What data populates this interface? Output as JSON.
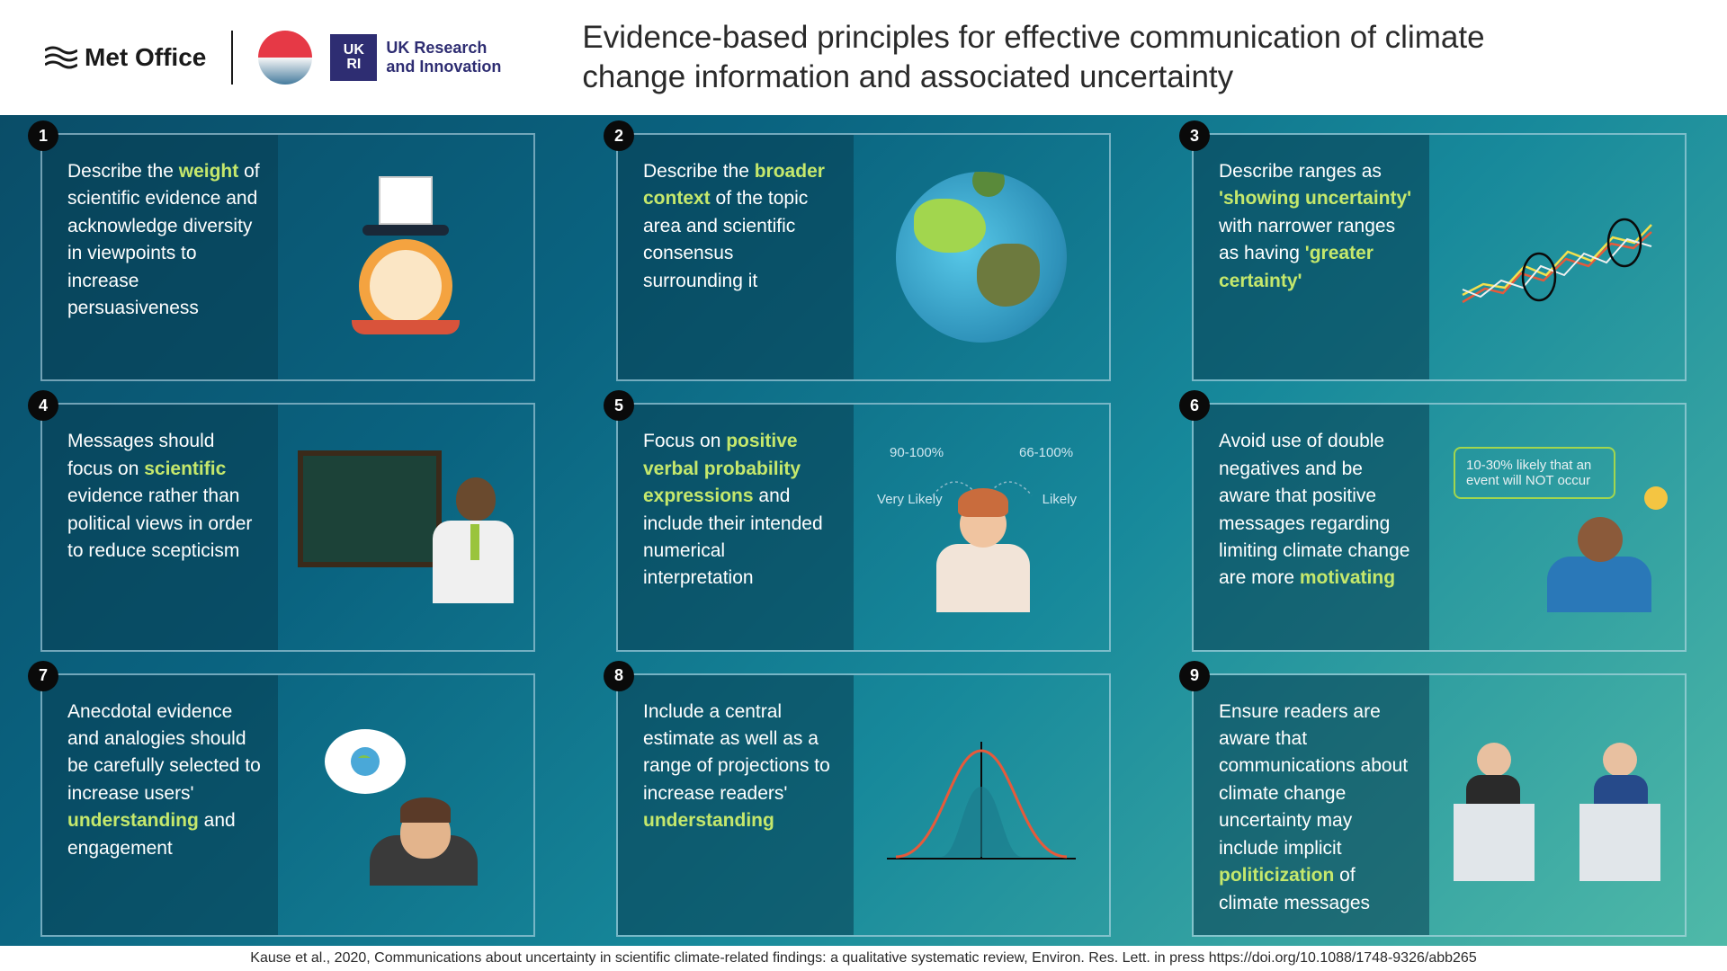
{
  "header": {
    "met_office": "Met Office",
    "ukri_line1": "UK Research",
    "ukri_line2": "and Innovation",
    "ukri_box": "UK RI",
    "title": "Evidence-based principles for effective communication of climate change information and associated uncertainty"
  },
  "style": {
    "highlight_color": "#c5e86c",
    "card_border_color": "rgba(201,225,238,0.55)",
    "card_text_bg": "rgba(7,60,80,0.55)",
    "card_text_color": "#ffffff",
    "gradient_from": "#0a4d68",
    "gradient_to": "#4fb9a8",
    "number_badge_bg": "#0a0a0a",
    "font_size_body": 21,
    "font_size_title": 35
  },
  "cards": [
    {
      "num": "1",
      "segments": [
        {
          "t": "Describe the "
        },
        {
          "t": "weight",
          "hl": true
        },
        {
          "t": " of scientific evidence and acknowledge diversity in viewpoints to increase persuasiveness"
        }
      ],
      "illus": "scale"
    },
    {
      "num": "2",
      "segments": [
        {
          "t": "Describe the "
        },
        {
          "t": "broader context",
          "hl": true
        },
        {
          "t": " of the topic area and scientific consensus surrounding it"
        }
      ],
      "illus": "globe"
    },
    {
      "num": "3",
      "segments": [
        {
          "t": "Describe ranges as "
        },
        {
          "t": "'showing uncertainty'",
          "hl": true
        },
        {
          "t": " with narrower ranges as having "
        },
        {
          "t": "'greater certainty'",
          "hl": true
        }
      ],
      "illus": "chart"
    },
    {
      "num": "4",
      "segments": [
        {
          "t": "Messages should focus on "
        },
        {
          "t": "scientific",
          "hl": true
        },
        {
          "t": " evidence rather than political views in order to reduce scepticism"
        }
      ],
      "illus": "teacher"
    },
    {
      "num": "5",
      "segments": [
        {
          "t": "Focus on "
        },
        {
          "t": "positive verbal probability expressions",
          "hl": true
        },
        {
          "t": " and include their intended numerical interpretation"
        }
      ],
      "illus": "probability",
      "labels": {
        "left_pct": "90-100%",
        "right_pct": "66-100%",
        "left_term": "Very Likely",
        "right_term": "Likely"
      }
    },
    {
      "num": "6",
      "segments": [
        {
          "t": "Avoid use of double negatives and be aware that positive messages regarding limiting climate change are more "
        },
        {
          "t": "motivating",
          "hl": true
        }
      ],
      "illus": "speaker",
      "bubble": "10-30% likely that an event will NOT occur"
    },
    {
      "num": "7",
      "segments": [
        {
          "t": "Anecdotal evidence and analogies should be carefully selected to increase users' "
        },
        {
          "t": "understanding",
          "hl": true
        },
        {
          "t": " and engagement"
        }
      ],
      "illus": "thinker"
    },
    {
      "num": "8",
      "segments": [
        {
          "t": "Include a central estimate as well as a range of projections to increase readers' "
        },
        {
          "t": "understanding",
          "hl": true
        }
      ],
      "illus": "bell"
    },
    {
      "num": "9",
      "segments": [
        {
          "t": "Ensure readers are aware that communications about climate change uncertainty may include implicit "
        },
        {
          "t": "politicization",
          "hl": true
        },
        {
          "t": " of climate messages"
        }
      ],
      "illus": "podium"
    }
  ],
  "footer": "Kause et al., 2020, Communications about uncertainty in scientific climate-related findings: a qualitative systematic review, Environ. Res. Lett. in press https://doi.org/10.1088/1748-9326/abb265"
}
